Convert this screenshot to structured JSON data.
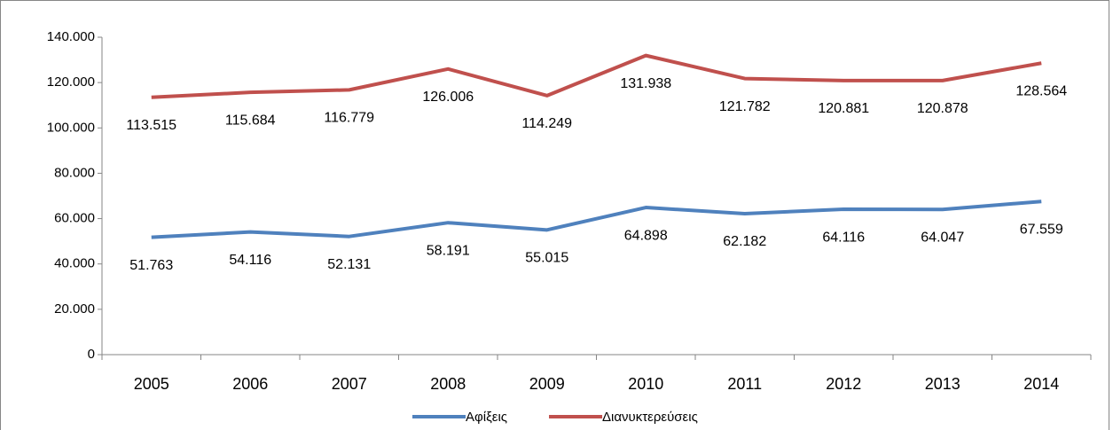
{
  "chart_data": {
    "type": "line",
    "categories": [
      "2005",
      "2006",
      "2007",
      "2008",
      "2009",
      "2010",
      "2011",
      "2012",
      "2013",
      "2014"
    ],
    "series": [
      {
        "name": "Αφίξεις",
        "color": "#4f81bd",
        "values": [
          51763,
          54116,
          52131,
          58191,
          55015,
          64898,
          62182,
          64116,
          64047,
          67559
        ],
        "value_labels": [
          "51.763",
          "54.116",
          "52.131",
          "58.191",
          "55.015",
          "64.898",
          "62.182",
          "64.116",
          "64.047",
          "67.559"
        ]
      },
      {
        "name": "Διανυκτερεύσεις",
        "color": "#c0504d",
        "values": [
          113515,
          115684,
          116779,
          126006,
          114249,
          131938,
          121782,
          120881,
          120878,
          128564
        ],
        "value_labels": [
          "113.515",
          "115.684",
          "116.779",
          "126.006",
          "114.249",
          "131.938",
          "121.782",
          "120.881",
          "120.878",
          "128.564"
        ]
      }
    ],
    "ylim": [
      0,
      140000
    ],
    "yticks": [
      0,
      {
        "value": 20000,
        "label": "20.000"
      },
      {
        "value": 40000,
        "label": "40.000"
      },
      {
        "value": 60000,
        "label": "60.000"
      },
      {
        "value": 80000,
        "label": "80.000"
      },
      {
        "value": 100000,
        "label": "100.000"
      },
      {
        "value": 120000,
        "label": "120.000"
      },
      {
        "value": 140000,
        "label": "140.000"
      }
    ],
    "grid": false,
    "legend": "bottom"
  }
}
